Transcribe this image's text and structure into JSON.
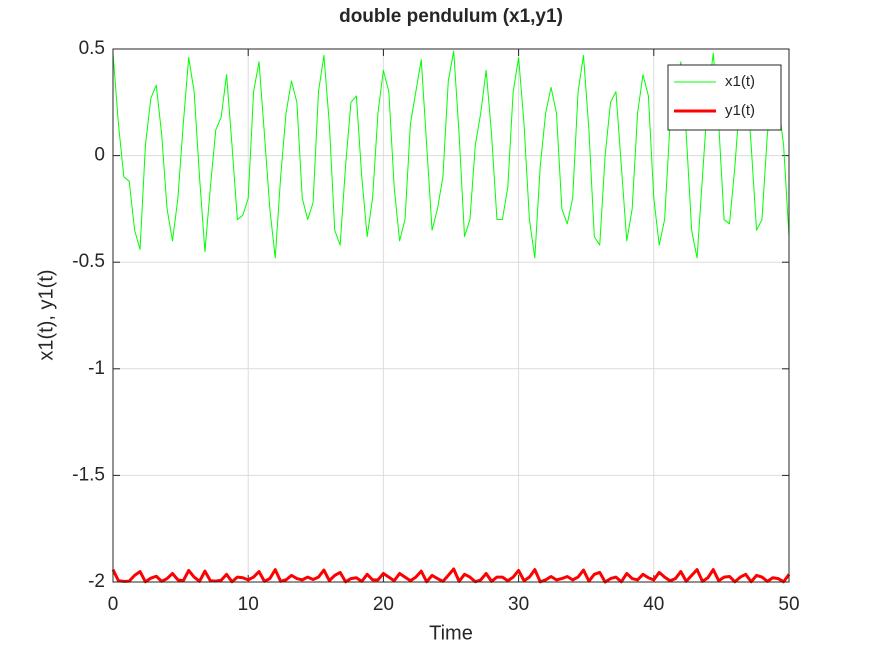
{
  "chart_data": {
    "type": "line",
    "title": "double pendulum (x1,y1)",
    "xlabel": "Time",
    "ylabel": "x1(t), y1(t)",
    "x": [
      0,
      0.4,
      0.8,
      1.2,
      1.6,
      2,
      2.4,
      2.8,
      3.2,
      3.6,
      4,
      4.4,
      4.8,
      5.2,
      5.6,
      6,
      6.4,
      6.8,
      7.2,
      7.6,
      8,
      8.4,
      8.8,
      9.2,
      9.6,
      10,
      10.4,
      10.8,
      11.2,
      11.6,
      12,
      12.4,
      12.8,
      13.2,
      13.6,
      14,
      14.4,
      14.8,
      15.2,
      15.6,
      16,
      16.4,
      16.8,
      17.2,
      17.6,
      18,
      18.4,
      18.8,
      19.2,
      19.6,
      20,
      20.4,
      20.8,
      21.2,
      21.6,
      22,
      22.4,
      22.8,
      23.2,
      23.6,
      24,
      24.4,
      24.8,
      25.2,
      25.6,
      26,
      26.4,
      26.8,
      27.2,
      27.6,
      28,
      28.4,
      28.8,
      29.2,
      29.6,
      30,
      30.4,
      30.8,
      31.2,
      31.6,
      32,
      32.4,
      32.8,
      33.2,
      33.6,
      34,
      34.4,
      34.8,
      35.2,
      35.6,
      36,
      36.4,
      36.8,
      37.2,
      37.6,
      38,
      38.4,
      38.8,
      39.2,
      39.6,
      40,
      40.4,
      40.8,
      41.2,
      41.6,
      42,
      42.4,
      42.8,
      43.2,
      43.6,
      44,
      44.4,
      44.8,
      45.2,
      45.6,
      46,
      46.4,
      46.8,
      47.2,
      47.6,
      48,
      48.4,
      48.8,
      49.2,
      49.6,
      50
    ],
    "series": [
      {
        "name": "x1(t)",
        "color": "#00ff00",
        "width": 1,
        "values": [
          0.48,
          0.15,
          -0.1,
          -0.12,
          -0.35,
          -0.44,
          0.05,
          0.27,
          0.33,
          0.1,
          -0.25,
          -0.4,
          -0.2,
          0.15,
          0.46,
          0.3,
          -0.1,
          -0.45,
          -0.15,
          0.12,
          0.18,
          0.38,
          0.05,
          -0.3,
          -0.28,
          -0.2,
          0.3,
          0.44,
          0.1,
          -0.25,
          -0.48,
          -0.1,
          0.2,
          0.35,
          0.25,
          -0.2,
          -0.3,
          -0.22,
          0.3,
          0.47,
          0.15,
          -0.35,
          -0.42,
          -0.05,
          0.25,
          0.28,
          -0.1,
          -0.38,
          -0.2,
          0.2,
          0.4,
          0.3,
          -0.15,
          -0.4,
          -0.3,
          0.15,
          0.3,
          0.45,
          0.05,
          -0.35,
          -0.25,
          -0.1,
          0.35,
          0.49,
          0.1,
          -0.38,
          -0.3,
          0.05,
          0.2,
          0.4,
          0.1,
          -0.3,
          -0.3,
          -0.15,
          0.3,
          0.46,
          0.15,
          -0.3,
          -0.48,
          -0.05,
          0.2,
          0.32,
          0.2,
          -0.25,
          -0.32,
          -0.2,
          0.3,
          0.47,
          0.12,
          -0.38,
          -0.42,
          0.0,
          0.25,
          0.3,
          -0.05,
          -0.4,
          -0.25,
          0.2,
          0.38,
          0.28,
          -0.2,
          -0.42,
          -0.3,
          0.15,
          0.25,
          0.44,
          0.1,
          -0.35,
          -0.48,
          -0.1,
          0.28,
          0.48,
          0.15,
          -0.3,
          -0.32,
          -0.05,
          0.3,
          0.38,
          0.05,
          -0.35,
          -0.3,
          0.1,
          0.28,
          0.25,
          0.05,
          -0.38
        ]
      },
      {
        "name": "y1(t)",
        "color": "#ff0000",
        "width": 3,
        "values": [
          -1.942,
          -1.994,
          -1.997,
          -1.996,
          -1.969,
          -1.951,
          -1.999,
          -1.982,
          -1.973,
          -1.997,
          -1.984,
          -1.96,
          -1.99,
          -1.994,
          -1.946,
          -1.977,
          -1.997,
          -1.949,
          -1.994,
          -1.996,
          -1.992,
          -1.964,
          -1.999,
          -1.977,
          -1.98,
          -1.99,
          -1.977,
          -1.951,
          -1.997,
          -1.984,
          -1.942,
          -1.997,
          -1.99,
          -1.969,
          -1.984,
          -1.99,
          -1.977,
          -1.988,
          -1.977,
          -1.944,
          -1.994,
          -1.969,
          -1.955,
          -1.999,
          -1.984,
          -1.98,
          -1.997,
          -1.964,
          -1.99,
          -1.99,
          -1.96,
          -1.977,
          -1.994,
          -1.96,
          -1.977,
          -1.994,
          -1.977,
          -1.949,
          -1.999,
          -1.969,
          -1.984,
          -1.997,
          -1.969,
          -1.939,
          -1.997,
          -1.964,
          -1.977,
          -1.999,
          -1.99,
          -1.96,
          -1.997,
          -1.977,
          -1.977,
          -1.994,
          -1.977,
          -1.946,
          -1.994,
          -1.977,
          -1.942,
          -1.999,
          -1.99,
          -1.974,
          -1.99,
          -1.984,
          -1.974,
          -1.99,
          -1.977,
          -1.944,
          -1.996,
          -1.964,
          -1.955,
          -2.0,
          -1.984,
          -1.977,
          -1.999,
          -1.96,
          -1.984,
          -1.99,
          -1.964,
          -1.98,
          -1.99,
          -1.955,
          -1.977,
          -1.994,
          -1.984,
          -1.951,
          -1.997,
          -1.969,
          -1.942,
          -1.997,
          -1.98,
          -1.942,
          -1.994,
          -1.977,
          -1.974,
          -1.999,
          -1.977,
          -1.964,
          -1.999,
          -1.969,
          -1.977,
          -1.997,
          -1.98,
          -1.984,
          -1.999,
          -1.964
        ]
      }
    ],
    "xlim": [
      0,
      50
    ],
    "xticks": [
      0,
      10,
      20,
      30,
      40,
      50
    ],
    "ylim": [
      -2,
      0.5
    ],
    "yticks": [
      -2,
      -1.5,
      -1,
      -0.5,
      0,
      0.5
    ],
    "grid": true,
    "legend": "northeast"
  }
}
